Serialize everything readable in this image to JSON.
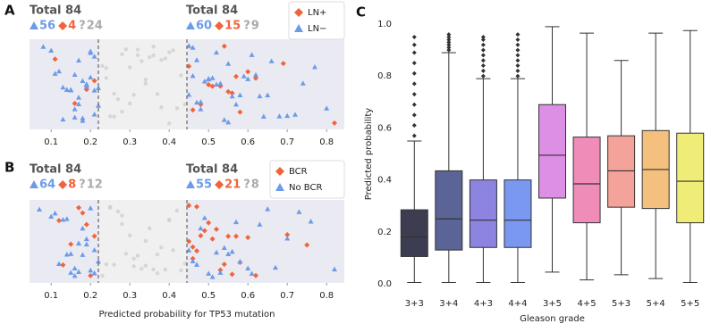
{
  "chart_data": [
    {
      "type": "strip",
      "panel_label": "A",
      "xlim": [
        0.045,
        0.845
      ],
      "xticks": [
        0.1,
        0.2,
        0.3,
        0.4,
        0.5,
        0.6,
        0.7,
        0.8
      ],
      "thresholds": [
        0.22,
        0.445
      ],
      "unknown_symbol": "?",
      "groups": [
        {
          "total_label": "Total 84",
          "counts": [
            56,
            4,
            24
          ]
        },
        {
          "total_label": "Total 84",
          "counts": [
            60,
            15,
            9
          ]
        }
      ],
      "series": [
        {
          "name": "LN+",
          "color": "#f0643c",
          "marker": "diamond",
          "x": [
            0.11,
            0.16,
            0.19,
            0.21,
            0.45,
            0.46,
            0.48,
            0.5,
            0.51,
            0.53,
            0.54,
            0.55,
            0.56,
            0.57,
            0.58,
            0.6,
            0.62,
            0.69,
            0.82
          ]
        },
        {
          "name": "LN−",
          "color": "#6c9be8",
          "marker": "triangle",
          "x": [
            0.08,
            0.1,
            0.11,
            0.12,
            0.13,
            0.13,
            0.14,
            0.14,
            0.15,
            0.15,
            0.16,
            0.16,
            0.16,
            0.17,
            0.17,
            0.17,
            0.18,
            0.18,
            0.18,
            0.19,
            0.19,
            0.19,
            0.2,
            0.2,
            0.2,
            0.21,
            0.21,
            0.21,
            0.22,
            0.22,
            0.45,
            0.45,
            0.46,
            0.46,
            0.47,
            0.47,
            0.48,
            0.48,
            0.49,
            0.5,
            0.5,
            0.51,
            0.52,
            0.52,
            0.53,
            0.54,
            0.55,
            0.55,
            0.56,
            0.57,
            0.58,
            0.59,
            0.6,
            0.61,
            0.62,
            0.63,
            0.64,
            0.65,
            0.66,
            0.68,
            0.7,
            0.72,
            0.74,
            0.77,
            0.8
          ]
        },
        {
          "color": "#cfcfcf",
          "marker": "circle",
          "x": [
            0.23,
            0.24,
            0.24,
            0.25,
            0.26,
            0.26,
            0.27,
            0.28,
            0.28,
            0.29,
            0.3,
            0.3,
            0.31,
            0.32,
            0.32,
            0.33,
            0.34,
            0.34,
            0.35,
            0.36,
            0.36,
            0.37,
            0.38,
            0.38,
            0.39,
            0.4,
            0.4,
            0.41,
            0.42,
            0.43,
            0.44
          ]
        }
      ]
    },
    {
      "type": "strip",
      "panel_label": "B",
      "xlim": [
        0.045,
        0.845
      ],
      "xticks": [
        0.1,
        0.2,
        0.3,
        0.4,
        0.5,
        0.6,
        0.7,
        0.8
      ],
      "thresholds": [
        0.22,
        0.445
      ],
      "xlabel": "Predicted probability for TP53 mutation",
      "unknown_symbol": "?",
      "groups": [
        {
          "total_label": "Total 84",
          "counts": [
            64,
            8,
            12
          ]
        },
        {
          "total_label": "Total 84",
          "counts": [
            55,
            21,
            8
          ]
        }
      ],
      "series": [
        {
          "name": "BCR",
          "color": "#f0643c",
          "marker": "diamond",
          "x": [
            0.12,
            0.13,
            0.15,
            0.17,
            0.18,
            0.19,
            0.2,
            0.21,
            0.45,
            0.45,
            0.46,
            0.46,
            0.47,
            0.47,
            0.48,
            0.49,
            0.5,
            0.51,
            0.52,
            0.53,
            0.54,
            0.55,
            0.56,
            0.57,
            0.58,
            0.6,
            0.62,
            0.7,
            0.75
          ]
        },
        {
          "name": "No BCR",
          "color": "#6c9be8",
          "marker": "triangle",
          "x": [
            0.07,
            0.1,
            0.11,
            0.12,
            0.13,
            0.14,
            0.14,
            0.15,
            0.15,
            0.16,
            0.16,
            0.17,
            0.17,
            0.17,
            0.18,
            0.18,
            0.19,
            0.19,
            0.2,
            0.2,
            0.21,
            0.21,
            0.22,
            0.45,
            0.46,
            0.47,
            0.48,
            0.49,
            0.5,
            0.51,
            0.52,
            0.53,
            0.54,
            0.55,
            0.56,
            0.57,
            0.58,
            0.6,
            0.61,
            0.63,
            0.65,
            0.67,
            0.7,
            0.73,
            0.76,
            0.82
          ]
        },
        {
          "color": "#cfcfcf",
          "marker": "circle",
          "x": [
            0.23,
            0.24,
            0.25,
            0.25,
            0.26,
            0.27,
            0.28,
            0.28,
            0.29,
            0.3,
            0.31,
            0.31,
            0.32,
            0.33,
            0.34,
            0.34,
            0.35,
            0.36,
            0.37,
            0.37,
            0.38,
            0.39,
            0.4,
            0.4,
            0.41,
            0.42,
            0.43,
            0.44
          ]
        }
      ]
    },
    {
      "type": "box",
      "panel_label": "C",
      "xlabel": "Gleason grade",
      "ylabel": "Predicted probability",
      "ylim": [
        0,
        1
      ],
      "yticks": [
        {
          "value": 0,
          "label": "0.0"
        },
        0.2,
        0.4,
        0.6,
        0.8,
        {
          "value": 1,
          "label": "1.0"
        }
      ],
      "categories": [
        "3+3",
        "3+4",
        "4+3",
        "4+4",
        "3+5",
        "4+5",
        "5+3",
        "5+4",
        "5+5"
      ],
      "boxes": [
        {
          "color": "#3d3d52",
          "low": 0.005,
          "q1": 0.105,
          "median": 0.18,
          "q3": 0.285,
          "high": 0.55,
          "outliers": [
            0.57,
            0.61,
            0.65,
            0.69,
            0.73,
            0.77,
            0.81,
            0.85,
            0.89,
            0.92,
            0.95
          ]
        },
        {
          "color": "#5a6496",
          "low": 0.005,
          "q1": 0.13,
          "median": 0.25,
          "q3": 0.435,
          "high": 0.89,
          "outliers": [
            0.9,
            0.91,
            0.92,
            0.93,
            0.94,
            0.95,
            0.96
          ]
        },
        {
          "color": "#8d83e0",
          "low": 0.005,
          "q1": 0.14,
          "median": 0.245,
          "q3": 0.4,
          "high": 0.79,
          "outliers": [
            0.8,
            0.82,
            0.84,
            0.86,
            0.88,
            0.9,
            0.92,
            0.94,
            0.95
          ]
        },
        {
          "color": "#7b98f0",
          "low": 0.005,
          "q1": 0.14,
          "median": 0.245,
          "q3": 0.4,
          "high": 0.79,
          "outliers": [
            0.8,
            0.82,
            0.84,
            0.86,
            0.88,
            0.9,
            0.92,
            0.94,
            0.96
          ]
        },
        {
          "color": "#dc8fe4",
          "low": 0.045,
          "q1": 0.33,
          "median": 0.495,
          "q3": 0.69,
          "high": 0.99,
          "outliers": []
        },
        {
          "color": "#f08cb8",
          "low": 0.015,
          "q1": 0.235,
          "median": 0.385,
          "q3": 0.565,
          "high": 0.965,
          "outliers": []
        },
        {
          "color": "#f4a39a",
          "low": 0.035,
          "q1": 0.295,
          "median": 0.435,
          "q3": 0.57,
          "high": 0.86,
          "outliers": []
        },
        {
          "color": "#f4c07e",
          "low": 0.02,
          "q1": 0.29,
          "median": 0.44,
          "q3": 0.59,
          "high": 0.965,
          "outliers": []
        },
        {
          "color": "#f0ec78",
          "low": 0.005,
          "q1": 0.235,
          "median": 0.395,
          "q3": 0.58,
          "high": 0.975,
          "outliers": []
        }
      ]
    }
  ]
}
